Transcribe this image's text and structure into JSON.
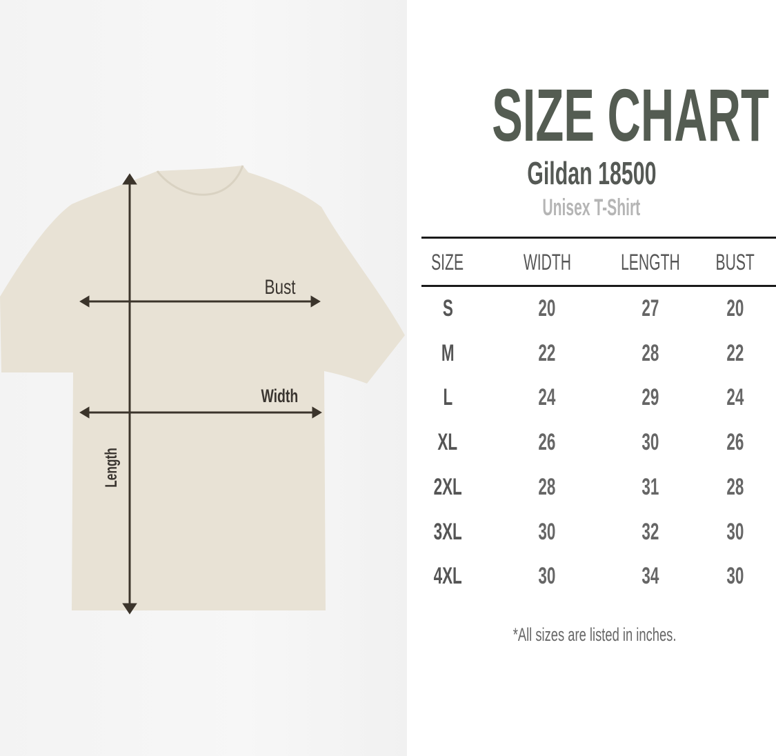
{
  "diagram": {
    "labels": {
      "bust": "Bust",
      "width": "Width",
      "length": "Length"
    },
    "colors": {
      "shirt": "#e8e2d5",
      "arrows": "#3b342b"
    }
  },
  "header": {
    "title": "SIZE CHART",
    "model": "Gildan 18500",
    "subtitle": "Unisex T-Shirt",
    "title_color": "#545c52"
  },
  "table": {
    "columns": [
      "SIZE",
      "WIDTH",
      "LENGTH",
      "BUST"
    ],
    "rows": [
      [
        "S",
        "20",
        "27",
        "20"
      ],
      [
        "M",
        "22",
        "28",
        "22"
      ],
      [
        "L",
        "24",
        "29",
        "24"
      ],
      [
        "XL",
        "26",
        "30",
        "26"
      ],
      [
        "2XL",
        "28",
        "31",
        "28"
      ],
      [
        "3XL",
        "30",
        "32",
        "30"
      ],
      [
        "4XL",
        "30",
        "34",
        "30"
      ]
    ]
  },
  "footnote": "*All sizes are listed in inches."
}
